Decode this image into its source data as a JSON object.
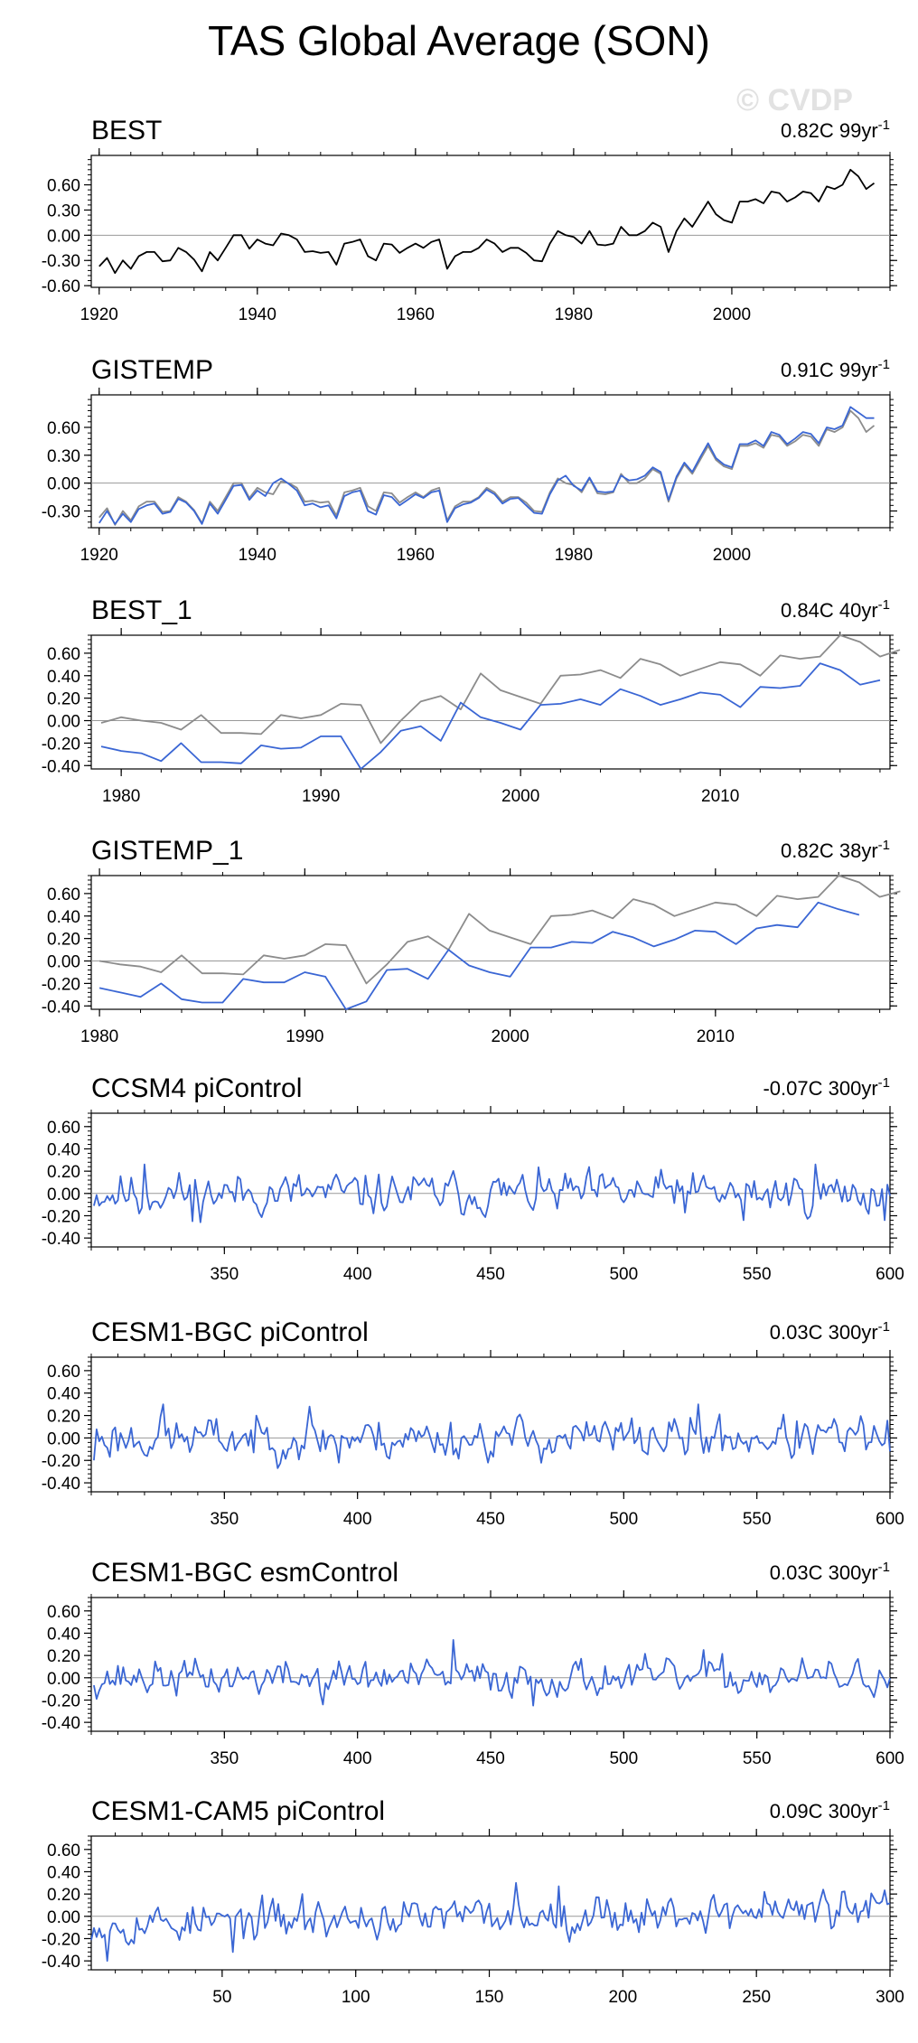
{
  "title": "TAS Global Average (SON)",
  "watermark": "© CVDP",
  "colors": {
    "obs": "#000000",
    "gray": "#8c8c8c",
    "model": "#3a66d4",
    "frame": "#000000",
    "zero": "#999999"
  },
  "chart_data": [
    {
      "type": "line",
      "title": "BEST",
      "trend": "0.82C 99yr",
      "trend_exp": "-1",
      "xlim": [
        1919,
        2020
      ],
      "ylim": [
        -0.62,
        0.95
      ],
      "yticks": [
        "0.60",
        "0.30",
        "0.00",
        "-0.30",
        "-0.60"
      ],
      "xticks": [
        "1920",
        "1940",
        "1960",
        "1980",
        "2000"
      ],
      "series": [
        {
          "color": "obs",
          "x_start": 1920,
          "values": [
            -0.37,
            -0.27,
            -0.45,
            -0.3,
            -0.4,
            -0.25,
            -0.2,
            -0.2,
            -0.31,
            -0.3,
            -0.15,
            -0.2,
            -0.29,
            -0.43,
            -0.2,
            -0.3,
            -0.15,
            0.0,
            0.0,
            -0.16,
            -0.05,
            -0.1,
            -0.12,
            0.02,
            0.0,
            -0.05,
            -0.2,
            -0.19,
            -0.21,
            -0.2,
            -0.35,
            -0.1,
            -0.08,
            -0.05,
            -0.25,
            -0.3,
            -0.1,
            -0.11,
            -0.21,
            -0.15,
            -0.1,
            -0.15,
            -0.08,
            -0.05,
            -0.4,
            -0.25,
            -0.2,
            -0.2,
            -0.15,
            -0.05,
            -0.1,
            -0.2,
            -0.15,
            -0.15,
            -0.21,
            -0.3,
            -0.31,
            -0.1,
            0.05,
            0.0,
            -0.02,
            -0.1,
            0.05,
            -0.11,
            -0.12,
            -0.1,
            0.1,
            0.0,
            0.0,
            0.05,
            0.15,
            0.1,
            -0.2,
            0.05,
            0.2,
            0.1,
            0.25,
            0.4,
            0.25,
            0.18,
            0.15,
            0.4,
            0.4,
            0.43,
            0.38,
            0.52,
            0.5,
            0.4,
            0.45,
            0.52,
            0.5,
            0.4,
            0.58,
            0.55,
            0.6,
            0.78,
            0.7,
            0.55,
            0.62
          ]
        }
      ]
    },
    {
      "type": "line",
      "title": "GISTEMP",
      "trend": "0.91C 99yr",
      "trend_exp": "-1",
      "xlim": [
        1919,
        2020
      ],
      "ylim": [
        -0.48,
        0.95
      ],
      "yticks": [
        "0.60",
        "0.30",
        "0.00",
        "-0.30"
      ],
      "xticks": [
        "1920",
        "1940",
        "1960",
        "1980",
        "2000"
      ],
      "series": [
        {
          "color": "gray",
          "x_start": 1920,
          "values": [
            -0.37,
            -0.27,
            -0.45,
            -0.3,
            -0.4,
            -0.25,
            -0.2,
            -0.2,
            -0.31,
            -0.3,
            -0.15,
            -0.2,
            -0.29,
            -0.43,
            -0.2,
            -0.3,
            -0.15,
            0.0,
            0.0,
            -0.16,
            -0.05,
            -0.1,
            -0.12,
            0.02,
            0.0,
            -0.05,
            -0.2,
            -0.19,
            -0.21,
            -0.2,
            -0.35,
            -0.1,
            -0.08,
            -0.05,
            -0.25,
            -0.3,
            -0.1,
            -0.11,
            -0.21,
            -0.15,
            -0.1,
            -0.15,
            -0.08,
            -0.05,
            -0.4,
            -0.25,
            -0.2,
            -0.2,
            -0.15,
            -0.05,
            -0.1,
            -0.2,
            -0.15,
            -0.15,
            -0.21,
            -0.3,
            -0.31,
            -0.1,
            0.05,
            0.0,
            -0.02,
            -0.1,
            0.05,
            -0.11,
            -0.12,
            -0.1,
            0.1,
            0.0,
            0.0,
            0.05,
            0.15,
            0.1,
            -0.2,
            0.05,
            0.2,
            0.1,
            0.25,
            0.4,
            0.25,
            0.18,
            0.15,
            0.4,
            0.4,
            0.43,
            0.38,
            0.52,
            0.5,
            0.4,
            0.45,
            0.52,
            0.5,
            0.4,
            0.58,
            0.55,
            0.6,
            0.78,
            0.7,
            0.55,
            0.62
          ]
        },
        {
          "color": "model",
          "x_start": 1920,
          "values": [
            -0.43,
            -0.3,
            -0.44,
            -0.33,
            -0.42,
            -0.28,
            -0.24,
            -0.22,
            -0.33,
            -0.31,
            -0.17,
            -0.21,
            -0.3,
            -0.44,
            -0.22,
            -0.33,
            -0.18,
            -0.03,
            -0.02,
            -0.18,
            -0.08,
            -0.14,
            0.0,
            0.05,
            -0.01,
            -0.08,
            -0.24,
            -0.22,
            -0.26,
            -0.24,
            -0.38,
            -0.14,
            -0.1,
            -0.08,
            -0.3,
            -0.34,
            -0.13,
            -0.15,
            -0.24,
            -0.18,
            -0.12,
            -0.16,
            -0.1,
            -0.08,
            -0.42,
            -0.27,
            -0.23,
            -0.21,
            -0.16,
            -0.07,
            -0.12,
            -0.22,
            -0.17,
            -0.16,
            -0.24,
            -0.32,
            -0.33,
            -0.12,
            0.03,
            0.08,
            -0.03,
            -0.08,
            0.06,
            -0.09,
            -0.1,
            -0.09,
            0.08,
            0.03,
            0.04,
            0.08,
            0.17,
            0.12,
            -0.18,
            0.07,
            0.22,
            0.12,
            0.28,
            0.43,
            0.27,
            0.2,
            0.17,
            0.42,
            0.42,
            0.46,
            0.4,
            0.55,
            0.52,
            0.42,
            0.48,
            0.55,
            0.53,
            0.43,
            0.6,
            0.58,
            0.62,
            0.82,
            0.76,
            0.7,
            0.7
          ]
        }
      ]
    },
    {
      "type": "line",
      "title": "BEST_1",
      "trend": "0.84C 40yr",
      "trend_exp": "-1",
      "xlim": [
        1978.5,
        2018.5
      ],
      "ylim": [
        -0.43,
        0.76
      ],
      "yticks": [
        "0.60",
        "0.40",
        "0.20",
        "0.00",
        "-0.20",
        "-0.40"
      ],
      "xticks": [
        "1980",
        "1990",
        "2000",
        "2010"
      ],
      "series": [
        {
          "color": "gray",
          "x_start": 1979,
          "values": [
            -0.02,
            0.03,
            0.0,
            -0.02,
            -0.08,
            0.05,
            -0.11,
            -0.11,
            -0.12,
            0.05,
            0.02,
            0.05,
            0.15,
            0.14,
            -0.2,
            0.0,
            0.17,
            0.22,
            0.1,
            0.42,
            0.27,
            0.21,
            0.15,
            0.4,
            0.41,
            0.45,
            0.38,
            0.55,
            0.5,
            0.4,
            0.46,
            0.52,
            0.5,
            0.4,
            0.58,
            0.55,
            0.57,
            0.76,
            0.7,
            0.57,
            0.63
          ]
        },
        {
          "color": "model",
          "x_start": 1979,
          "values": [
            -0.23,
            -0.27,
            -0.29,
            -0.36,
            -0.2,
            -0.37,
            -0.37,
            -0.38,
            -0.22,
            -0.25,
            -0.24,
            -0.14,
            -0.14,
            -0.44,
            -0.28,
            -0.09,
            -0.05,
            -0.18,
            0.16,
            0.03,
            -0.02,
            -0.08,
            0.14,
            0.15,
            0.19,
            0.14,
            0.28,
            0.22,
            0.14,
            0.19,
            0.25,
            0.23,
            0.12,
            0.3,
            0.29,
            0.31,
            0.51,
            0.45,
            0.32,
            0.36
          ]
        }
      ]
    },
    {
      "type": "line",
      "title": "GISTEMP_1",
      "trend": "0.82C 38yr",
      "trend_exp": "-1",
      "xlim": [
        1979.6,
        2018.5
      ],
      "ylim": [
        -0.43,
        0.76
      ],
      "yticks": [
        "0.60",
        "0.40",
        "0.20",
        "0.00",
        "-0.20",
        "-0.40"
      ],
      "xticks": [
        "1980",
        "1990",
        "2000",
        "2010"
      ],
      "series": [
        {
          "color": "gray",
          "x_start": 1980,
          "values": [
            0.0,
            -0.03,
            -0.05,
            -0.1,
            0.05,
            -0.11,
            -0.11,
            -0.12,
            0.05,
            0.02,
            0.05,
            0.15,
            0.14,
            -0.2,
            -0.03,
            0.17,
            0.22,
            0.1,
            0.42,
            0.27,
            0.21,
            0.15,
            0.4,
            0.41,
            0.45,
            0.38,
            0.55,
            0.5,
            0.4,
            0.46,
            0.52,
            0.5,
            0.4,
            0.58,
            0.55,
            0.57,
            0.76,
            0.7,
            0.57,
            0.62
          ]
        },
        {
          "color": "model",
          "x_start": 1980,
          "values": [
            -0.24,
            -0.28,
            -0.32,
            -0.2,
            -0.34,
            -0.37,
            -0.37,
            -0.16,
            -0.19,
            -0.19,
            -0.1,
            -0.14,
            -0.44,
            -0.36,
            -0.08,
            -0.07,
            -0.16,
            0.1,
            -0.04,
            -0.1,
            -0.14,
            0.12,
            0.12,
            0.17,
            0.16,
            0.26,
            0.21,
            0.13,
            0.19,
            0.27,
            0.26,
            0.15,
            0.29,
            0.32,
            0.3,
            0.52,
            0.46,
            0.41
          ]
        }
      ]
    },
    {
      "type": "line",
      "title": "CCSM4 piControl",
      "trend": "-0.07C 300yr",
      "trend_exp": "-1",
      "xlim": [
        300,
        600
      ],
      "ylim": [
        -0.48,
        0.72
      ],
      "yticks": [
        "0.60",
        "0.40",
        "0.20",
        "0.00",
        "-0.20",
        "-0.40"
      ],
      "xticks": [
        "350",
        "400",
        "450",
        "500",
        "550",
        "600"
      ],
      "series": [
        {
          "color": "model",
          "x_start": 301,
          "x_step": 1,
          "amplitude": 0.12,
          "seed": 11,
          "spikes": [
            [
              320,
              0.26
            ],
            [
              318,
              -0.18
            ],
            [
              338,
              -0.25
            ],
            [
              520,
              0.12
            ],
            [
              572,
              0.26
            ],
            [
              545,
              -0.24
            ],
            [
              598,
              -0.24
            ]
          ]
        }
      ]
    },
    {
      "type": "line",
      "title": "CESM1-BGC piControl",
      "trend": "0.03C 300yr",
      "trend_exp": "-1",
      "xlim": [
        300,
        600
      ],
      "ylim": [
        -0.48,
        0.72
      ],
      "yticks": [
        "0.60",
        "0.40",
        "0.20",
        "0.00",
        "-0.20",
        "-0.40"
      ],
      "xticks": [
        "350",
        "400",
        "450",
        "500",
        "550",
        "600"
      ],
      "series": [
        {
          "color": "model",
          "x_start": 301,
          "x_step": 1,
          "amplitude": 0.12,
          "seed": 23,
          "spikes": [
            [
              327,
              0.3
            ],
            [
              382,
              0.28
            ],
            [
              528,
              0.3
            ],
            [
              393,
              -0.22
            ],
            [
              301,
              -0.2
            ]
          ]
        }
      ]
    },
    {
      "type": "line",
      "title": "CESM1-BGC esmControl",
      "trend": "0.03C 300yr",
      "trend_exp": "-1",
      "xlim": [
        300,
        600
      ],
      "ylim": [
        -0.48,
        0.72
      ],
      "yticks": [
        "0.60",
        "0.40",
        "0.20",
        "0.00",
        "-0.20",
        "-0.40"
      ],
      "xticks": [
        "350",
        "400",
        "450",
        "500",
        "550",
        "600"
      ],
      "series": [
        {
          "color": "model",
          "x_start": 301,
          "x_step": 1,
          "amplitude": 0.1,
          "seed": 37,
          "spikes": [
            [
              436,
              0.34
            ],
            [
              466,
              -0.25
            ],
            [
              387,
              -0.24
            ],
            [
              530,
              0.25
            ]
          ]
        }
      ]
    },
    {
      "type": "line",
      "title": "CESM1-CAM5 piControl",
      "trend": "0.09C 300yr",
      "trend_exp": "-1",
      "xlim": [
        1,
        300
      ],
      "ylim": [
        -0.48,
        0.72
      ],
      "yticks": [
        "0.60",
        "0.40",
        "0.20",
        "0.00",
        "-0.20",
        "-0.40"
      ],
      "xticks": [
        "50",
        "100",
        "150",
        "200",
        "250",
        "300"
      ],
      "series": [
        {
          "color": "model",
          "x_start": 1,
          "x_step": 1,
          "amplitude": 0.11,
          "seed": 53,
          "trend_per_step": 0.0003,
          "spikes": [
            [
              7,
              -0.4
            ],
            [
              160,
              0.3
            ],
            [
              176,
              0.27
            ],
            [
              253,
              0.22
            ],
            [
              80,
              0.2
            ],
            [
              54,
              -0.32
            ]
          ]
        }
      ]
    }
  ]
}
